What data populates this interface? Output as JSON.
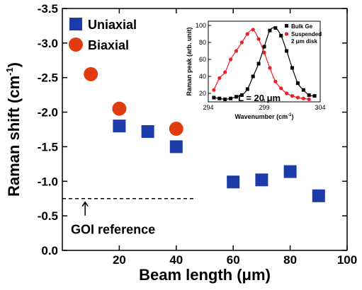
{
  "chart_data": [
    {
      "type": "scatter",
      "xlabel": "Beam length (μm)",
      "ylabel_main": "Raman shift (cm",
      "ylabel_sup": "-1",
      "ylabel_close": ")",
      "xlim": [
        0,
        100
      ],
      "ylim": [
        0.0,
        -3.5
      ],
      "x_ticks": [
        20,
        40,
        60,
        80,
        100
      ],
      "x_tick_labels": [
        "20",
        "40",
        "60",
        "80",
        "100"
      ],
      "y_ticks": [
        0.0,
        -0.5,
        -1.0,
        -1.5,
        -2.0,
        -2.5,
        -3.0,
        -3.5
      ],
      "y_tick_labels": [
        "0.0",
        "-0.5",
        "-1.0",
        "-1.5",
        "-2.0",
        "-2.5",
        "-3.0",
        "-3.5"
      ],
      "legend_position": "top-left",
      "series": [
        {
          "name": "Uniaxial",
          "marker": "square",
          "color": "#1c3aa8",
          "points": [
            [
              20,
              -1.8
            ],
            [
              30,
              -1.72
            ],
            [
              40,
              -1.5
            ],
            [
              60,
              -0.99
            ],
            [
              70,
              -1.02
            ],
            [
              80,
              -1.14
            ],
            [
              90,
              -0.79
            ]
          ]
        },
        {
          "name": "Biaxial",
          "marker": "circle",
          "color": "#e03c10",
          "points": [
            [
              10,
              -2.55
            ],
            [
              20,
              -2.05
            ],
            [
              40,
              -1.76
            ]
          ]
        }
      ],
      "reference_line": {
        "y": -0.75,
        "x_range": [
          0,
          46
        ],
        "style": "dashed",
        "label": "GOI reference",
        "arrow_x": 8
      }
    },
    {
      "type": "line",
      "role": "inset",
      "xlabel": "Wavenumber (cm",
      "xlabel_sup": "-1",
      "xlabel_close": ")",
      "ylabel": "Raman peak (arb. unit)",
      "xlim": [
        294,
        304
      ],
      "ylim": [
        10,
        105
      ],
      "x_ticks": [
        294,
        299,
        304
      ],
      "x_tick_labels": [
        "294",
        "299",
        "304"
      ],
      "y_ticks": [
        20,
        40,
        60,
        80,
        100
      ],
      "y_tick_labels": [
        "20",
        "40",
        "60",
        "80",
        "100"
      ],
      "annotation": "L = 20 μm",
      "legend_position": "top-right",
      "series": [
        {
          "name": "Bulk Ge",
          "marker": "square",
          "color": "#000000",
          "x": [
            294.5,
            295.0,
            295.5,
            296.0,
            296.5,
            297.0,
            297.5,
            298.0,
            298.5,
            299.0,
            299.5,
            300.0,
            300.5,
            301.0,
            301.5,
            302.0,
            302.5,
            303.0,
            303.5
          ],
          "y": [
            15,
            14,
            13,
            14,
            16,
            18,
            25,
            40,
            55,
            75,
            94,
            97,
            88,
            70,
            50,
            32,
            24,
            18,
            17
          ]
        },
        {
          "name_lines": [
            "Suspended",
            "2 μm disk"
          ],
          "marker": "circle",
          "color": "#ee1c24",
          "x": [
            294.5,
            295.0,
            295.5,
            296.0,
            296.5,
            297.0,
            297.5,
            298.0,
            298.5,
            299.0,
            299.5,
            300.0,
            300.5,
            301.0,
            301.5,
            302.0,
            302.5,
            303.0
          ],
          "y": [
            24,
            38,
            45,
            60,
            70,
            80,
            90,
            95,
            84,
            68,
            50,
            34,
            26,
            20,
            17,
            15,
            14,
            13
          ]
        }
      ]
    }
  ]
}
